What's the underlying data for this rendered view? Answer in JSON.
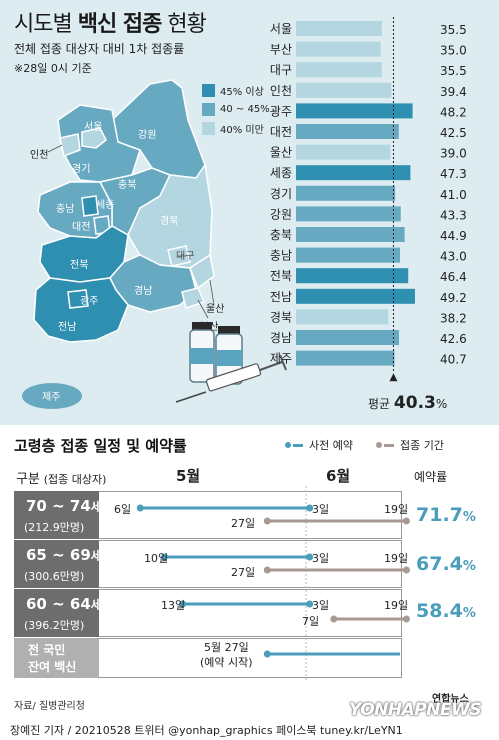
{
  "header": {
    "title_pre": "시도별 ",
    "title_bold": "백신 접종",
    "title_post": " 현황",
    "subtitle": "전체 접종 대상자 대비 1차 접종률",
    "note": "※28일 0시 기준"
  },
  "legend": [
    {
      "label": "45% 이상",
      "color": "#2f8fb0"
    },
    {
      "label": "40 ~ 45%",
      "color": "#68a9c2"
    },
    {
      "label": "40% 미만",
      "color": "#b3d6e0"
    }
  ],
  "map_labels": [
    "서울",
    "인천",
    "강원",
    "경기",
    "충북",
    "충남",
    "세종",
    "대전",
    "경북",
    "대구",
    "전북",
    "울산",
    "경남",
    "부산",
    "광주",
    "전남",
    "제주"
  ],
  "chart_data": [
    {
      "type": "bar",
      "orientation": "horizontal",
      "categories": [
        "서울",
        "부산",
        "대구",
        "인천",
        "광주",
        "대전",
        "울산",
        "세종",
        "경기",
        "강원",
        "충북",
        "충남",
        "전북",
        "전남",
        "경북",
        "경남",
        "제주"
      ],
      "values": [
        35.5,
        35.0,
        35.5,
        39.4,
        48.2,
        42.5,
        39.0,
        47.3,
        41.0,
        43.3,
        44.9,
        43.0,
        46.4,
        49.2,
        38.2,
        42.6,
        40.7
      ],
      "value_labels": [
        "35.5",
        "35.0",
        "35.5",
        "39.4",
        "48.2",
        "42.5",
        "39.0",
        "47.3",
        "41.0",
        "43.3",
        "44.9",
        "43.0",
        "46.4",
        "49.2",
        "38.2",
        "42.6",
        "40.7"
      ],
      "average": 40.3,
      "average_label_pre": "평균",
      "average_value": "40.3",
      "average_unit": "%",
      "color_rule": {
        "high": "#2f8fb0",
        "mid": "#68a9c2",
        "low": "#b3d6e0"
      }
    },
    {
      "type": "timeline",
      "title": "고령층 접종 일정 및 예약률",
      "legend": [
        {
          "name": "사전 예약",
          "color": "#4a9dbb"
        },
        {
          "name": "접종 기간",
          "color": "#a89a92"
        }
      ],
      "columns": {
        "group": "구분",
        "group_sub": "(접종 대상자)",
        "may": "5월",
        "june": "6월",
        "rate": "예약률"
      },
      "rows": [
        {
          "group": "70 ~ 74",
          "unit": "세",
          "people": "(212.9만명)",
          "reserve_start_day": 6,
          "reserve_end_day": 34,
          "reserve_start_label": "6일",
          "reserve_end_label": "3일",
          "vacc_start_day": 27,
          "vacc_end_day": 50,
          "vacc_start_label": "27일",
          "vacc_end_label": "19일",
          "rate": "71.7",
          "rate_unit": "%"
        },
        {
          "group": "65 ~ 69",
          "unit": "세",
          "people": "(300.6만명)",
          "reserve_start_day": 10,
          "reserve_end_day": 34,
          "reserve_start_label": "10일",
          "reserve_end_label": "3일",
          "vacc_start_day": 27,
          "vacc_end_day": 50,
          "vacc_start_label": "27일",
          "vacc_end_label": "19일",
          "rate": "67.4",
          "rate_unit": "%"
        },
        {
          "group": "60 ~ 64",
          "unit": "세",
          "people": "(396.2만명)",
          "reserve_start_day": 13,
          "reserve_end_day": 34,
          "reserve_start_label": "13일",
          "reserve_end_label": "3일",
          "vacc_start_day": 38,
          "vacc_end_day": 50,
          "vacc_start_label": "7일",
          "vacc_end_label": "19일",
          "rate": "58.4",
          "rate_unit": "%"
        },
        {
          "group_line1": "전 국민",
          "group_line2": "잔여 백신",
          "reserve_start_day": 27,
          "note_line1": "5월 27일",
          "note_line2": "(예약 시작)"
        }
      ]
    }
  ],
  "source": "자료/ 질병관리청",
  "footer": "장예진 기자 / 20210528 트위터 @yonhap_graphics  페이스북 tuney.kr/LeYN1",
  "brand": "YONHAPNEWS",
  "brand_small": "연합뉴스"
}
